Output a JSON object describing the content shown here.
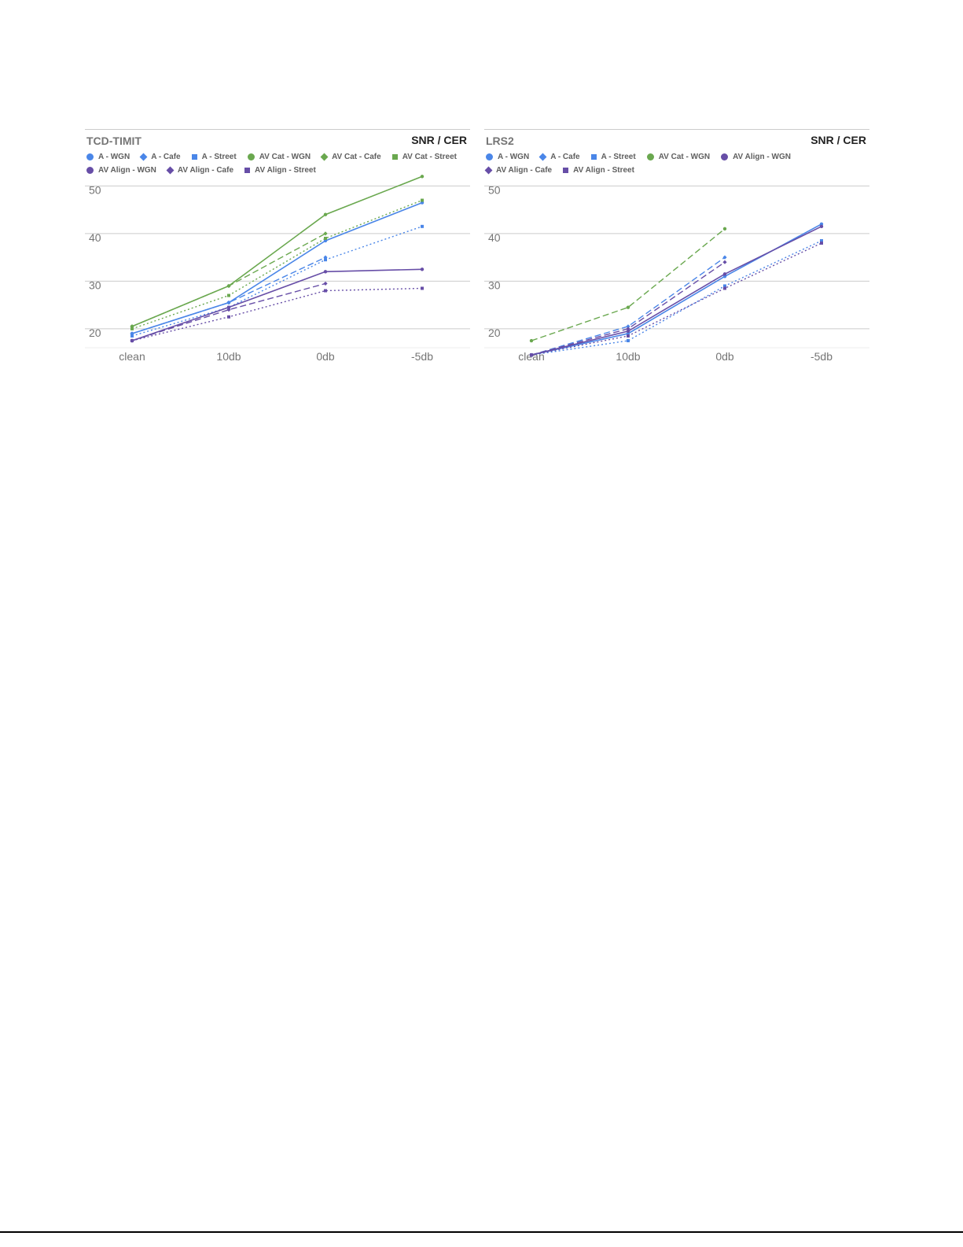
{
  "corner_label": "SNR / CER",
  "chart_data": [
    {
      "type": "line",
      "title": "TCD-TIMIT",
      "categories": [
        "clean",
        "10db",
        "0db",
        "-5db"
      ],
      "ylim": [
        15,
        52
      ],
      "yticks": [
        20,
        30,
        40,
        50
      ],
      "grid": true,
      "legend_placement": "top",
      "series": [
        {
          "name": "A - WGN",
          "values": [
            19,
            25.5,
            38.5,
            46.5
          ],
          "color": "#4a86e8",
          "style": "solid",
          "marker": "circle"
        },
        {
          "name": "A - Cafe",
          "values": [
            19,
            25.5,
            35,
            null
          ],
          "color": "#4a86e8",
          "style": "dashed",
          "marker": "diamond"
        },
        {
          "name": "A - Street",
          "values": [
            18.5,
            24.5,
            34.5,
            41.5
          ],
          "color": "#4a86e8",
          "style": "dotted",
          "marker": "square"
        },
        {
          "name": "AV Cat - WGN",
          "values": [
            20.5,
            29,
            44,
            52
          ],
          "color": "#6aa84f",
          "style": "solid",
          "marker": "circle"
        },
        {
          "name": "AV Cat - Cafe",
          "values": [
            20.5,
            29,
            40,
            null
          ],
          "color": "#6aa84f",
          "style": "dashed",
          "marker": "diamond"
        },
        {
          "name": "AV Cat - Street",
          "values": [
            20,
            27,
            39,
            47
          ],
          "color": "#6aa84f",
          "style": "dotted",
          "marker": "square"
        },
        {
          "name": "AV Align - WGN",
          "values": [
            17.5,
            24.5,
            32,
            32.5
          ],
          "color": "#674ea7",
          "style": "solid",
          "marker": "circle"
        },
        {
          "name": "AV Align - Cafe",
          "values": [
            17.5,
            24,
            29.5,
            null
          ],
          "color": "#674ea7",
          "style": "dashed",
          "marker": "diamond"
        },
        {
          "name": "AV Align - Street",
          "values": [
            17.5,
            22.5,
            28,
            28.5
          ],
          "color": "#674ea7",
          "style": "dotted",
          "marker": "square"
        }
      ]
    },
    {
      "type": "line",
      "title": "LRS2",
      "categories": [
        "clean",
        "10db",
        "0db",
        "-5db"
      ],
      "ylim": [
        15,
        52
      ],
      "yticks": [
        20,
        30,
        40,
        50
      ],
      "grid": true,
      "legend_placement": "top",
      "series": [
        {
          "name": "A - WGN",
          "values": [
            14.5,
            19,
            31,
            42
          ],
          "color": "#4a86e8",
          "style": "solid",
          "marker": "circle"
        },
        {
          "name": "A - Cafe",
          "values": [
            14.5,
            20.5,
            35,
            null
          ],
          "color": "#4a86e8",
          "style": "dashed",
          "marker": "diamond"
        },
        {
          "name": "A - Street",
          "values": [
            14.5,
            17.5,
            29,
            38.5
          ],
          "color": "#4a86e8",
          "style": "dotted",
          "marker": "square"
        },
        {
          "name": "AV Cat - WGN",
          "values": [
            17.5,
            24.5,
            41,
            null
          ],
          "color": "#6aa84f",
          "style": "dashed",
          "marker": "circle"
        },
        {
          "name": "AV Align - WGN",
          "values": [
            14.5,
            19.5,
            31.5,
            41.5
          ],
          "color": "#674ea7",
          "style": "solid",
          "marker": "circle"
        },
        {
          "name": "AV Align - Cafe",
          "values": [
            14.5,
            20,
            34,
            null
          ],
          "color": "#674ea7",
          "style": "dashed",
          "marker": "diamond"
        },
        {
          "name": "AV Align - Street",
          "values": [
            14.5,
            18.5,
            28.5,
            38
          ],
          "color": "#674ea7",
          "style": "dotted",
          "marker": "square"
        }
      ]
    }
  ]
}
